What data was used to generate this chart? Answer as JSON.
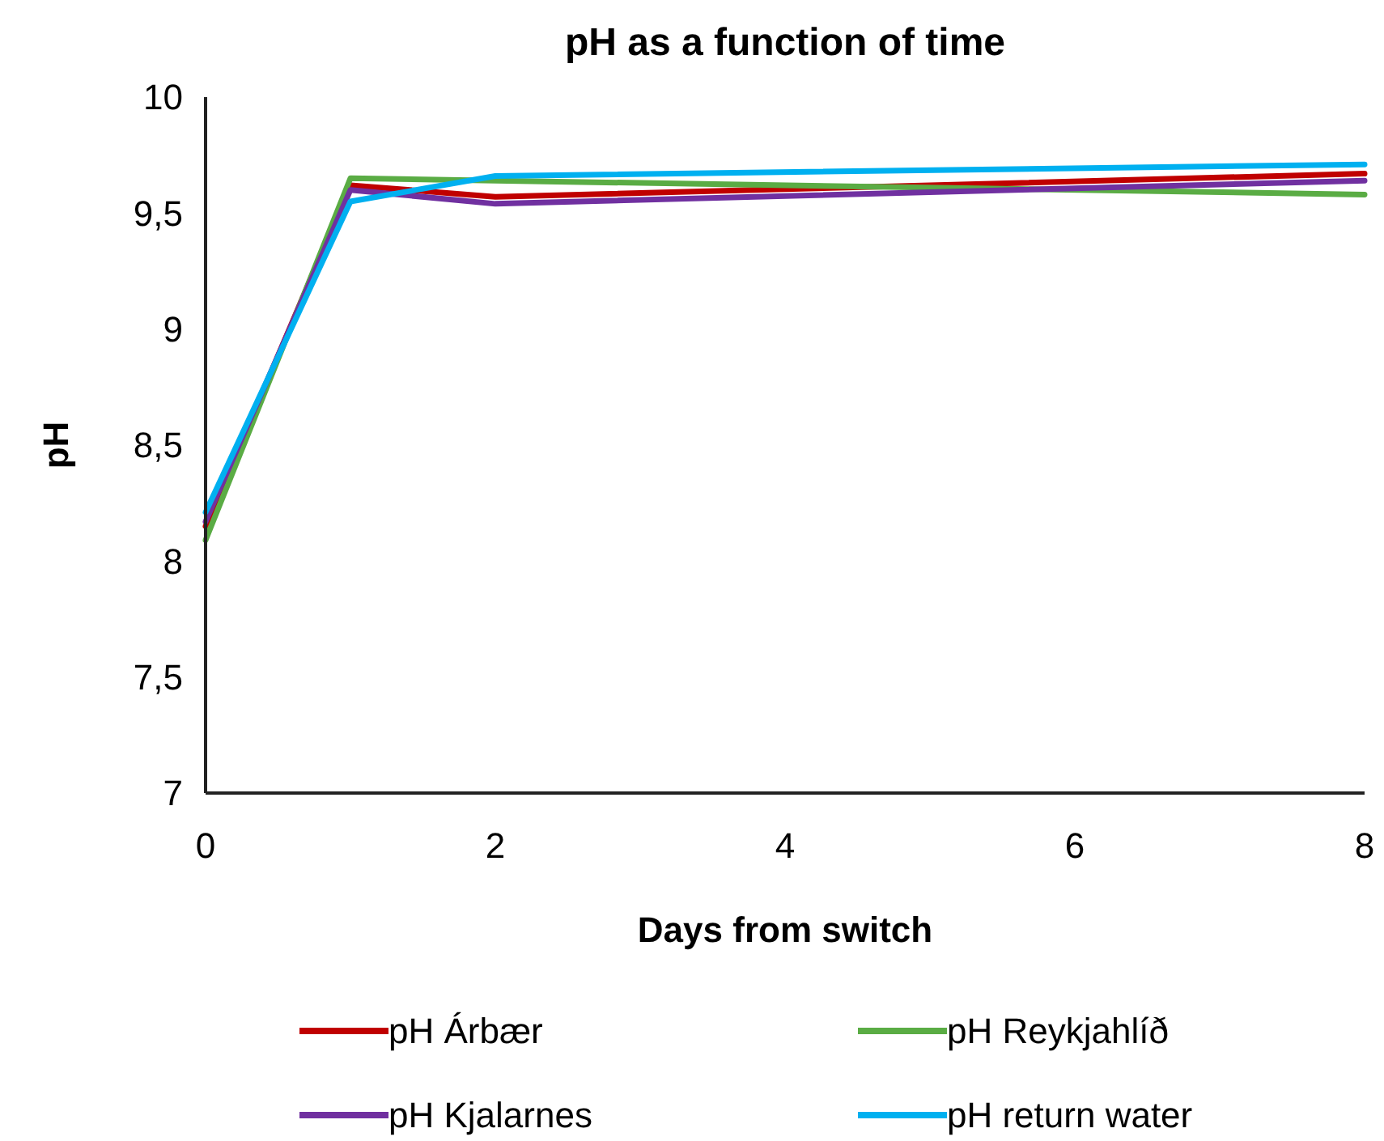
{
  "chart_data": {
    "type": "line",
    "title": "pH as a function of time",
    "xlabel": "Days from switch",
    "ylabel": "pH",
    "x": [
      0,
      1,
      2,
      8
    ],
    "series": [
      {
        "name": "pH Árbær",
        "color": "#c00000",
        "values": [
          8.15,
          9.62,
          9.57,
          9.67
        ]
      },
      {
        "name": "pH Reykjahlíð",
        "color": "#5aac44",
        "values": [
          8.09,
          9.65,
          9.64,
          9.58
        ]
      },
      {
        "name": "pH Kjalarnes",
        "color": "#7030a0",
        "values": [
          8.17,
          9.6,
          9.54,
          9.64
        ]
      },
      {
        "name": "pH return water",
        "color": "#00b0f0",
        "values": [
          8.21,
          9.55,
          9.66,
          9.71
        ]
      }
    ],
    "xlim": [
      0,
      8
    ],
    "xticks": [
      0,
      2,
      4,
      6,
      8
    ],
    "ylim": [
      7,
      10
    ],
    "yticks": [
      {
        "value": 7,
        "label": "7"
      },
      {
        "value": 7.5,
        "label": "7,5"
      },
      {
        "value": 8,
        "label": "8"
      },
      {
        "value": 8.5,
        "label": "8,5"
      },
      {
        "value": 9,
        "label": "9"
      },
      {
        "value": 9.5,
        "label": "9,5"
      },
      {
        "value": 10,
        "label": "10"
      }
    ],
    "grid": false,
    "legend": "bottom",
    "marker": "none",
    "line_style": "solid"
  }
}
